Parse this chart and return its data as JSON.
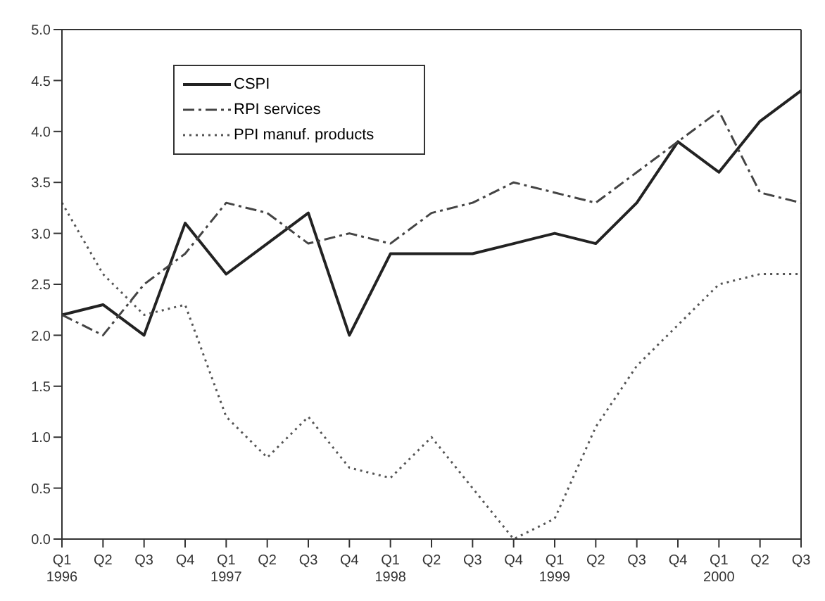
{
  "chart_data": {
    "type": "line",
    "categories": [
      "Q1 1996",
      "Q2",
      "Q3",
      "Q4",
      "Q1 1997",
      "Q2",
      "Q3",
      "Q4",
      "Q1 1998",
      "Q2",
      "Q3",
      "Q4",
      "Q1 1999",
      "Q2",
      "Q3",
      "Q4",
      "Q1 2000",
      "Q2",
      "Q3"
    ],
    "series": [
      {
        "name": "CSPI",
        "color": "#222222",
        "line_style": "solid",
        "values": [
          2.2,
          2.3,
          2.0,
          3.1,
          2.6,
          2.9,
          3.2,
          2.0,
          2.8,
          2.8,
          2.8,
          2.9,
          3.0,
          2.9,
          3.3,
          3.9,
          3.6,
          4.1,
          4.4
        ]
      },
      {
        "name": "RPI services",
        "color": "#444444",
        "line_style": "dashed",
        "values": [
          2.2,
          2.0,
          2.5,
          2.8,
          3.3,
          3.2,
          2.9,
          3.0,
          2.9,
          3.2,
          3.3,
          3.5,
          3.4,
          3.3,
          3.6,
          3.9,
          4.2,
          3.4,
          3.3
        ]
      },
      {
        "name": "PPI manuf. products",
        "color": "#555555",
        "line_style": "dotted",
        "values": [
          3.3,
          2.6,
          2.2,
          2.3,
          1.2,
          0.8,
          1.2,
          0.7,
          0.6,
          1.0,
          0.5,
          0.0,
          0.2,
          1.1,
          1.7,
          2.1,
          2.5,
          2.6,
          2.6
        ]
      }
    ],
    "ylim": [
      0,
      5
    ],
    "yticks": [
      {
        "value": 0,
        "label": "0.0"
      },
      {
        "value": 0.5,
        "label": "0.5"
      },
      {
        "value": 1,
        "label": "1.0"
      },
      {
        "value": 1.5,
        "label": "1.5"
      },
      {
        "value": 2,
        "label": "2.0"
      },
      {
        "value": 2.5,
        "label": "2.5"
      },
      {
        "value": 3,
        "label": "3.0"
      },
      {
        "value": 3.5,
        "label": "3.5"
      },
      {
        "value": 4,
        "label": "4.0"
      },
      {
        "value": 4.5,
        "label": "4.5"
      },
      {
        "value": 5,
        "label": "5.0"
      }
    ],
    "grid": false,
    "legend": "top left",
    "marker": "none"
  }
}
